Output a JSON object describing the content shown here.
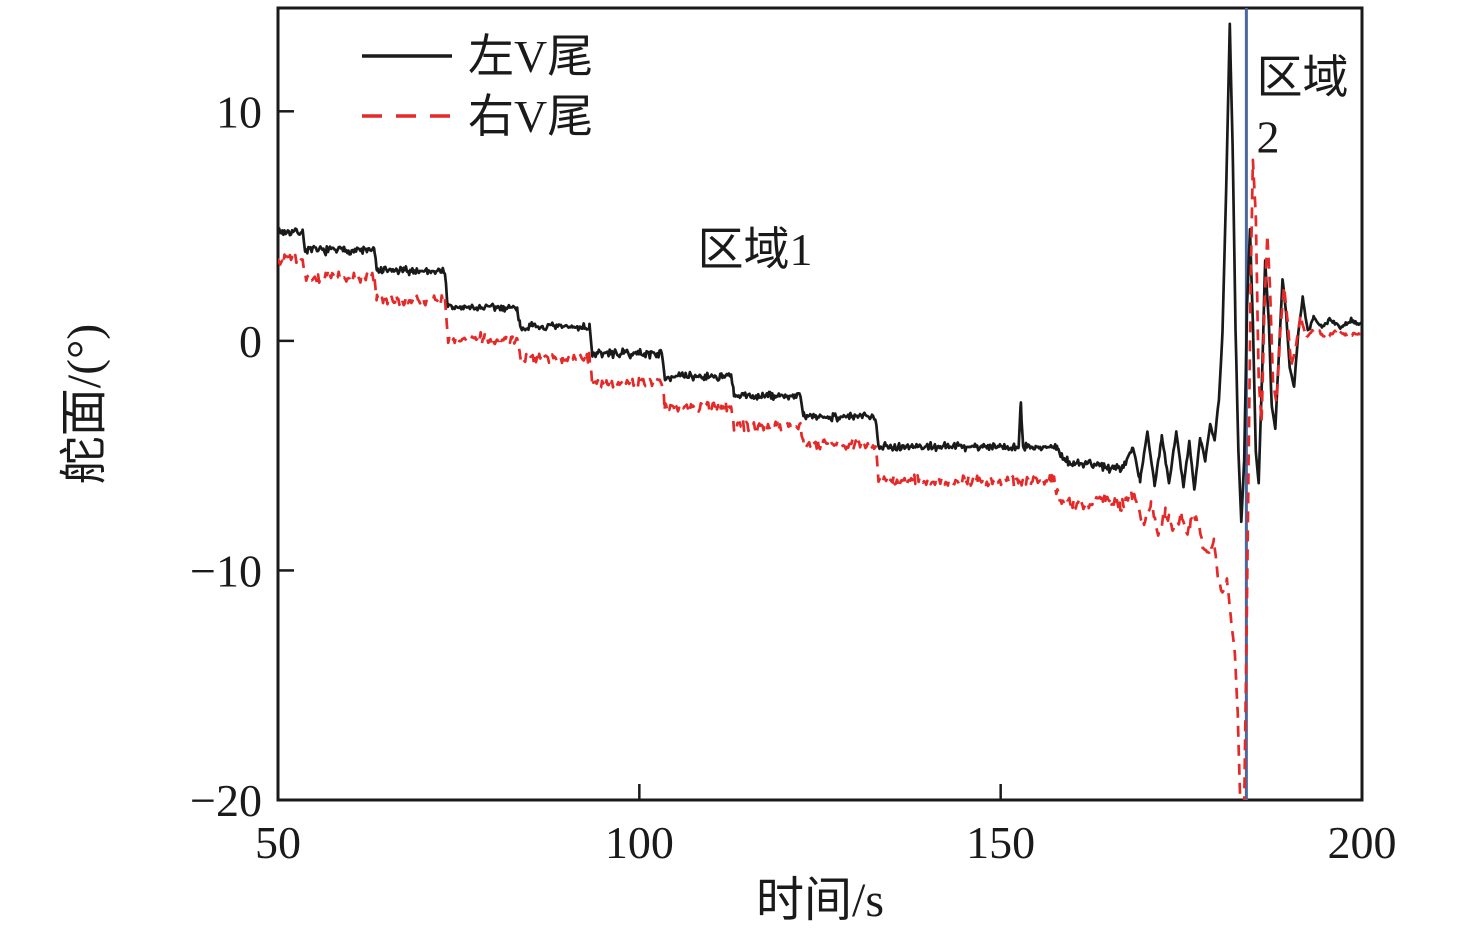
{
  "figure": {
    "background": "#ffffff"
  },
  "axes": {
    "xlabel": "时间/s",
    "ylabel": "舵面/(°)",
    "xlim": [
      50,
      200
    ],
    "ylim": [
      -20,
      14.5
    ],
    "line_color": "#1a1a1a",
    "xticks": [
      {
        "v": 50,
        "label": "50"
      },
      {
        "v": 100,
        "label": "100"
      },
      {
        "v": 150,
        "label": "150"
      },
      {
        "v": 200,
        "label": "200"
      }
    ],
    "yticks": [
      {
        "v": -20,
        "label": "−20"
      },
      {
        "v": -10,
        "label": "−10"
      },
      {
        "v": 0,
        "label": "0"
      },
      {
        "v": 10,
        "label": "10"
      }
    ]
  },
  "legend": {
    "items": [
      {
        "label": "左V尾",
        "color": "#1a1a1a",
        "dash": "solid"
      },
      {
        "label": "右V尾",
        "color": "#e42a28",
        "dash": "dashed"
      }
    ]
  },
  "chart_data": {
    "type": "line",
    "title": "",
    "xlabel": "时间/s",
    "ylabel": "舵面/(°)",
    "xlim": [
      50,
      200
    ],
    "ylim": [
      -20,
      14.5
    ],
    "grid": false,
    "legend_position": "top-left-inside",
    "vline": {
      "t": 184,
      "color": "#4a679e"
    },
    "annotations": [
      {
        "text": "区域1",
        "t": 116,
        "v": 3.3,
        "anchor": "middle"
      },
      {
        "text": "区域",
        "t": 185.4,
        "v": 10.8,
        "anchor": "start"
      },
      {
        "text": "2",
        "t": 185.4,
        "v": 8.2,
        "anchor": "start"
      }
    ],
    "series": [
      {
        "name": "左V尾",
        "color": "#1a1a1a",
        "style": "solid",
        "keypoints": [
          [
            50,
            4.75
          ],
          [
            53.4,
            4.75
          ],
          [
            53.8,
            3.95
          ],
          [
            63.3,
            3.95
          ],
          [
            63.7,
            3.05
          ],
          [
            73.1,
            3.05
          ],
          [
            73.5,
            1.45
          ],
          [
            83.1,
            1.45
          ],
          [
            83.5,
            0.6
          ],
          [
            93.1,
            0.6
          ],
          [
            93.5,
            -0.55
          ],
          [
            103.1,
            -0.55
          ],
          [
            103.5,
            -1.55
          ],
          [
            112.7,
            -1.55
          ],
          [
            113.1,
            -2.4
          ],
          [
            122.3,
            -2.4
          ],
          [
            122.7,
            -3.3
          ],
          [
            132.7,
            -3.3
          ],
          [
            133.1,
            -4.6
          ],
          [
            152.5,
            -4.6
          ],
          [
            152.8,
            -2.7
          ],
          [
            153.1,
            -4.6
          ],
          [
            157.8,
            -4.65
          ],
          [
            158.8,
            -5.25
          ],
          [
            166.8,
            -5.55
          ],
          [
            168.3,
            -4.6
          ],
          [
            169.3,
            -6.1
          ],
          [
            170.3,
            -3.9
          ],
          [
            171.3,
            -6.3
          ],
          [
            172.3,
            -4.2
          ],
          [
            173.3,
            -6.2
          ],
          [
            174.3,
            -4.0
          ],
          [
            175.3,
            -6.3
          ],
          [
            176.1,
            -4.4
          ],
          [
            176.8,
            -6.5
          ],
          [
            177.6,
            -4.2
          ],
          [
            178.3,
            -5.2
          ],
          [
            179.0,
            -3.6
          ],
          [
            179.6,
            -4.3
          ],
          [
            180.2,
            -2.6
          ],
          [
            180.7,
            0.4
          ],
          [
            181.2,
            6.5
          ],
          [
            181.7,
            13.8
          ],
          [
            182.1,
            8.5
          ],
          [
            182.5,
            0.5
          ],
          [
            182.9,
            -4.8
          ],
          [
            183.3,
            -7.9
          ],
          [
            183.7,
            -5.2
          ],
          [
            184.1,
            1.6
          ],
          [
            184.5,
            4.9
          ],
          [
            184.9,
            0.8
          ],
          [
            185.3,
            -4.8
          ],
          [
            185.7,
            -6.2
          ],
          [
            186.2,
            -1.2
          ],
          [
            186.6,
            3.5
          ],
          [
            187.1,
            0.8
          ],
          [
            187.5,
            -2.8
          ],
          [
            188.0,
            -3.8
          ],
          [
            188.5,
            -0.6
          ],
          [
            189.0,
            2.7
          ],
          [
            189.5,
            1.2
          ],
          [
            190.0,
            -1.2
          ],
          [
            190.6,
            -2.0
          ],
          [
            191.2,
            0.4
          ],
          [
            191.8,
            1.9
          ],
          [
            192.5,
            0.4
          ],
          [
            193.3,
            1.0
          ],
          [
            194.3,
            0.6
          ],
          [
            195.5,
            0.9
          ],
          [
            197,
            0.6
          ],
          [
            198.5,
            0.9
          ],
          [
            200,
            0.7
          ]
        ],
        "noise": [
          [
            50,
            0.22
          ],
          [
            157,
            0.22
          ],
          [
            158,
            0.28
          ],
          [
            167.5,
            0.28
          ],
          [
            168,
            0.12
          ],
          [
            180,
            0.1
          ],
          [
            181,
            0.05
          ],
          [
            191,
            0.06
          ],
          [
            192.5,
            0.12
          ],
          [
            200,
            0.13
          ]
        ]
      },
      {
        "name": "右V尾",
        "color": "#e42a28",
        "style": "dashed",
        "keypoints": [
          [
            50,
            3.55
          ],
          [
            53.4,
            3.55
          ],
          [
            53.8,
            2.75
          ],
          [
            63.3,
            2.75
          ],
          [
            63.7,
            1.8
          ],
          [
            73.1,
            1.8
          ],
          [
            73.5,
            0.1
          ],
          [
            83.1,
            0.1
          ],
          [
            83.5,
            -0.75
          ],
          [
            93.1,
            -0.75
          ],
          [
            93.5,
            -1.85
          ],
          [
            103.1,
            -1.85
          ],
          [
            103.5,
            -2.85
          ],
          [
            112.7,
            -2.85
          ],
          [
            113.1,
            -3.7
          ],
          [
            122.3,
            -3.7
          ],
          [
            122.7,
            -4.5
          ],
          [
            132.7,
            -4.5
          ],
          [
            133.1,
            -6.1
          ],
          [
            157.3,
            -6.1
          ],
          [
            158.3,
            -7.0
          ],
          [
            162.5,
            -7.15
          ],
          [
            164.5,
            -6.7
          ],
          [
            166.5,
            -7.3
          ],
          [
            168.3,
            -6.6
          ],
          [
            169.8,
            -8.1
          ],
          [
            170.8,
            -7.0
          ],
          [
            171.8,
            -8.5
          ],
          [
            172.8,
            -7.3
          ],
          [
            173.8,
            -8.4
          ],
          [
            174.8,
            -7.6
          ],
          [
            175.8,
            -8.3
          ],
          [
            176.8,
            -7.6
          ],
          [
            177.4,
            -8.1
          ],
          [
            178.1,
            -9.1
          ],
          [
            178.9,
            -9.3
          ],
          [
            179.5,
            -8.7
          ],
          [
            180.1,
            -10.4
          ],
          [
            180.7,
            -11.0
          ],
          [
            181.3,
            -10.4
          ],
          [
            181.9,
            -12.2
          ],
          [
            182.4,
            -13.6
          ],
          [
            182.8,
            -16.2
          ],
          [
            183.2,
            -20.6
          ],
          [
            183.7,
            -20.3
          ],
          [
            184.0,
            -13.5
          ],
          [
            184.3,
            -5.5
          ],
          [
            184.6,
            2.5
          ],
          [
            184.9,
            7.9
          ],
          [
            185.3,
            5.4
          ],
          [
            185.7,
            -1.6
          ],
          [
            186.1,
            -3.6
          ],
          [
            186.5,
            1.4
          ],
          [
            186.9,
            4.6
          ],
          [
            187.3,
            2.1
          ],
          [
            187.7,
            -1.9
          ],
          [
            188.2,
            -2.7
          ],
          [
            188.7,
            0.4
          ],
          [
            189.2,
            2.4
          ],
          [
            189.7,
            0.9
          ],
          [
            190.2,
            -1.1
          ],
          [
            190.8,
            -0.3
          ],
          [
            191.5,
            1.1
          ],
          [
            192.3,
            0.1
          ],
          [
            193.5,
            0.6
          ],
          [
            195,
            0.1
          ],
          [
            196.5,
            0.5
          ],
          [
            198,
            0.2
          ],
          [
            200,
            0.4
          ]
        ],
        "noise": [
          [
            50,
            0.28
          ],
          [
            157,
            0.28
          ],
          [
            158,
            0.32
          ],
          [
            177,
            0.32
          ],
          [
            178,
            0.14
          ],
          [
            181,
            0.08
          ],
          [
            191,
            0.06
          ],
          [
            192.5,
            0.1
          ],
          [
            200,
            0.1
          ]
        ]
      }
    ]
  }
}
